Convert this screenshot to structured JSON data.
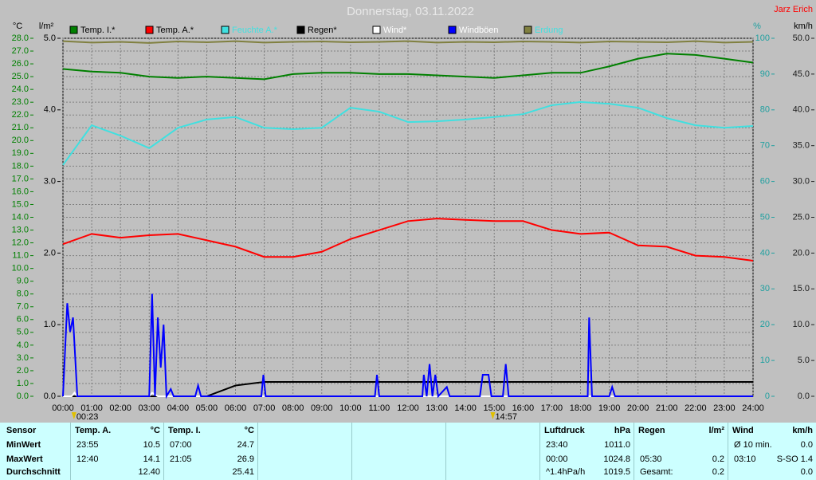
{
  "chart_data": {
    "type": "line",
    "title": "Donnerstag, 03.11.2022",
    "author": "Jarz Erich",
    "y_label": "°C",
    "y2_label": "l/m²",
    "y3_label": "%",
    "y4_label": "km/h",
    "x": [
      0,
      1,
      2,
      3,
      4,
      5,
      6,
      7,
      8,
      9,
      10,
      11,
      12,
      13,
      14,
      15,
      16,
      17,
      18,
      19,
      20,
      21,
      22,
      23,
      24
    ],
    "xlim": [
      0,
      24
    ],
    "xticks": [
      {
        "value": 0,
        "label": "00:00"
      },
      {
        "value": 1,
        "label": "01:00"
      },
      {
        "value": 2,
        "label": "02:00"
      },
      {
        "value": 3,
        "label": "03:00"
      },
      {
        "value": 4,
        "label": "04:00"
      },
      {
        "value": 5,
        "label": "05:00"
      },
      {
        "value": 6,
        "label": "06:00"
      },
      {
        "value": 7,
        "label": "07:00"
      },
      {
        "value": 8,
        "label": "08:00"
      },
      {
        "value": 9,
        "label": "09:00"
      },
      {
        "value": 10,
        "label": "10:00"
      },
      {
        "value": 11,
        "label": "11:00"
      },
      {
        "value": 12,
        "label": "12:00"
      },
      {
        "value": 13,
        "label": "13:00"
      },
      {
        "value": 14,
        "label": "14:00"
      },
      {
        "value": 15,
        "label": "15:00"
      },
      {
        "value": 16,
        "label": "16:00"
      },
      {
        "value": 17,
        "label": "17:00"
      },
      {
        "value": 18,
        "label": "18:00"
      },
      {
        "value": 19,
        "label": "19:00"
      },
      {
        "value": 20,
        "label": "20:00"
      },
      {
        "value": 21,
        "label": "21:00"
      },
      {
        "value": 22,
        "label": "22:00"
      },
      {
        "value": 23,
        "label": "23:00"
      },
      {
        "value": 24,
        "label": "24:00"
      }
    ],
    "ylim": [
      0,
      28
    ],
    "yticks": [
      {
        "value": 0,
        "label": "0.0"
      },
      {
        "value": 1,
        "label": "1.0"
      },
      {
        "value": 2,
        "label": "2.0"
      },
      {
        "value": 3,
        "label": "3.0"
      },
      {
        "value": 4,
        "label": "4.0"
      },
      {
        "value": 5,
        "label": "5.0"
      },
      {
        "value": 6,
        "label": "6.0"
      },
      {
        "value": 7,
        "label": "7.0"
      },
      {
        "value": 8,
        "label": "8.0"
      },
      {
        "value": 9,
        "label": "9.0"
      },
      {
        "value": 10,
        "label": "10.0"
      },
      {
        "value": 11,
        "label": "11.0"
      },
      {
        "value": 12,
        "label": "12.0"
      },
      {
        "value": 13,
        "label": "13.0"
      },
      {
        "value": 14,
        "label": "14.0"
      },
      {
        "value": 15,
        "label": "15.0"
      },
      {
        "value": 16,
        "label": "16.0"
      },
      {
        "value": 17,
        "label": "17.0"
      },
      {
        "value": 18,
        "label": "18.0"
      },
      {
        "value": 19,
        "label": "19.0"
      },
      {
        "value": 20,
        "label": "20.0"
      },
      {
        "value": 21,
        "label": "21.0"
      },
      {
        "value": 22,
        "label": "22.0"
      },
      {
        "value": 23,
        "label": "23.0"
      },
      {
        "value": 24,
        "label": "24.0"
      },
      {
        "value": 25,
        "label": "25.0"
      },
      {
        "value": 26,
        "label": "26.0"
      },
      {
        "value": 27,
        "label": "27.0"
      },
      {
        "value": 28,
        "label": "28.0"
      }
    ],
    "y2lim": [
      0,
      5
    ],
    "y2ticks": [
      {
        "value": 0,
        "label": "0.0"
      },
      {
        "value": 1,
        "label": "1.0"
      },
      {
        "value": 2,
        "label": "2.0"
      },
      {
        "value": 3,
        "label": "3.0"
      },
      {
        "value": 4,
        "label": "4.0"
      },
      {
        "value": 5,
        "label": "5.0"
      }
    ],
    "y3lim": [
      0,
      100
    ],
    "y3ticks": [
      0,
      10,
      20,
      30,
      40,
      50,
      60,
      70,
      80,
      90,
      100
    ],
    "y4lim": [
      0,
      50
    ],
    "y4ticks": [
      {
        "value": 0,
        "label": "0.0"
      },
      {
        "value": 5,
        "label": "5.0"
      },
      {
        "value": 10,
        "label": "10.0"
      },
      {
        "value": 15,
        "label": "15.0"
      },
      {
        "value": 20,
        "label": "20.0"
      },
      {
        "value": 25,
        "label": "25.0"
      },
      {
        "value": 30,
        "label": "30.0"
      },
      {
        "value": 35,
        "label": "35.0"
      },
      {
        "value": 40,
        "label": "40.0"
      },
      {
        "value": 45,
        "label": "45.0"
      },
      {
        "value": 50,
        "label": "50.0"
      }
    ],
    "grid": true,
    "series": [
      {
        "name": "Temp. I.*",
        "color": "#008000",
        "axis": "y",
        "values": [
          25.6,
          25.4,
          25.3,
          25.0,
          24.9,
          25.0,
          24.9,
          24.8,
          25.2,
          25.3,
          25.3,
          25.2,
          25.2,
          25.1,
          25.0,
          24.9,
          25.1,
          25.3,
          25.3,
          25.8,
          26.4,
          26.8,
          26.7,
          26.4,
          26.1
        ]
      },
      {
        "name": "Temp. A.*",
        "color": "#ff0000",
        "axis": "y",
        "values": [
          11.9,
          12.7,
          12.4,
          12.6,
          12.7,
          12.2,
          11.7,
          10.9,
          10.9,
          11.3,
          12.3,
          13.0,
          13.7,
          13.9,
          13.8,
          13.7,
          13.7,
          13.0,
          12.7,
          12.8,
          11.8,
          11.7,
          11.0,
          10.9,
          10.6
        ]
      },
      {
        "name": "Feuchte A.*",
        "color": "#40e0e0",
        "axis": "y3",
        "values": [
          64.6,
          75.7,
          72.8,
          69.3,
          75.0,
          77.3,
          78.0,
          75.0,
          74.6,
          75.0,
          80.6,
          79.5,
          76.6,
          76.8,
          77.3,
          78.0,
          78.8,
          81.3,
          82.2,
          81.7,
          80.6,
          77.7,
          75.7,
          75.0,
          75.5
        ]
      },
      {
        "name": "Regen*",
        "color": "#000000",
        "axis": "y2",
        "values": [
          0,
          0,
          0,
          0,
          0,
          0,
          0.15,
          0.2,
          0.2,
          0.2,
          0.2,
          0.2,
          0.2,
          0.2,
          0.2,
          0.2,
          0.2,
          0.2,
          0.2,
          0.2,
          0.2,
          0.2,
          0.2,
          0.2,
          0.2
        ]
      },
      {
        "name": "Wind*",
        "color": "#ffffff",
        "axis": "y4",
        "x": [
          0,
          0.3,
          0.4,
          0.5,
          3.0,
          3.1,
          3.3,
          24
        ],
        "values": [
          0,
          0,
          0.5,
          0,
          0,
          0.5,
          0,
          0
        ]
      },
      {
        "name": "Windböen",
        "color": "#0000ff",
        "axis": "y4",
        "x": [
          0,
          0.15,
          0.25,
          0.35,
          0.5,
          3.0,
          3.1,
          3.2,
          3.3,
          3.4,
          3.5,
          3.6,
          3.75,
          3.85,
          4.6,
          4.7,
          4.8,
          6.9,
          6.97,
          7.05,
          10.85,
          10.92,
          11.0,
          12.5,
          12.55,
          12.65,
          12.75,
          12.85,
          12.95,
          13.05,
          13.35,
          13.45,
          14.5,
          14.6,
          14.8,
          14.9,
          15.3,
          15.4,
          15.5,
          18.25,
          18.3,
          18.4,
          19.0,
          19.1,
          19.2,
          24
        ],
        "values": [
          0,
          13,
          9,
          11,
          0,
          0,
          14.3,
          0,
          11,
          4,
          10,
          0,
          1,
          0,
          0,
          1.5,
          0,
          0,
          3,
          0,
          0,
          3,
          0,
          0,
          3,
          0,
          4.5,
          0,
          3,
          0,
          1.3,
          0,
          0,
          3,
          3,
          0,
          0,
          4.5,
          0,
          0,
          11,
          0,
          0,
          1.3,
          0,
          0
        ]
      },
      {
        "name": "Erdung",
        "color": "#808040",
        "axis": "y3",
        "values": [
          99.2,
          98.8,
          99.0,
          98.7,
          99.1,
          98.9,
          99.2,
          98.8,
          99.0,
          99.1,
          98.9,
          99.0,
          99.2,
          98.8,
          99.0,
          98.9,
          99.1,
          99.0,
          98.8,
          99.1,
          99.0,
          98.9,
          99.2,
          98.8,
          99.0
        ]
      }
    ],
    "annotations": [
      {
        "x": 0.383,
        "label": "00:23"
      },
      {
        "x": 14.95,
        "label": "14:57"
      }
    ]
  },
  "table": {
    "row_labels": [
      "Sensor",
      "MinWert",
      "MaxWert",
      "Durchschnitt"
    ],
    "columns": [
      {
        "title": "Temp. A.",
        "unit": "°C",
        "min": [
          "23:55",
          "10.5"
        ],
        "max": [
          "12:40",
          "14.1"
        ],
        "avg": [
          "12.40"
        ]
      },
      {
        "title": "Temp. I.",
        "unit": "°C",
        "min": [
          "07:00",
          "24.7"
        ],
        "max": [
          "21:05",
          "26.9"
        ],
        "avg": [
          "25.41"
        ]
      },
      {
        "title": "Luftdruck",
        "unit": "hPa",
        "min": [
          "23:40",
          "1011.0"
        ],
        "max": [
          "00:00",
          "1024.8"
        ],
        "avg": [
          "^1.4hPa/h",
          "1019.5"
        ]
      },
      {
        "title": "Regen",
        "unit": "l/m²",
        "max": [
          "05:30",
          "0.2"
        ],
        "avg": [
          "Gesamt:",
          "0.2"
        ]
      },
      {
        "title": "Wind",
        "unit": "km/h",
        "min": [
          "Ø 10 min.",
          "0.0"
        ],
        "max": [
          "03:10",
          "S-SO 1.4"
        ],
        "avg": [
          "0.0"
        ]
      }
    ]
  }
}
